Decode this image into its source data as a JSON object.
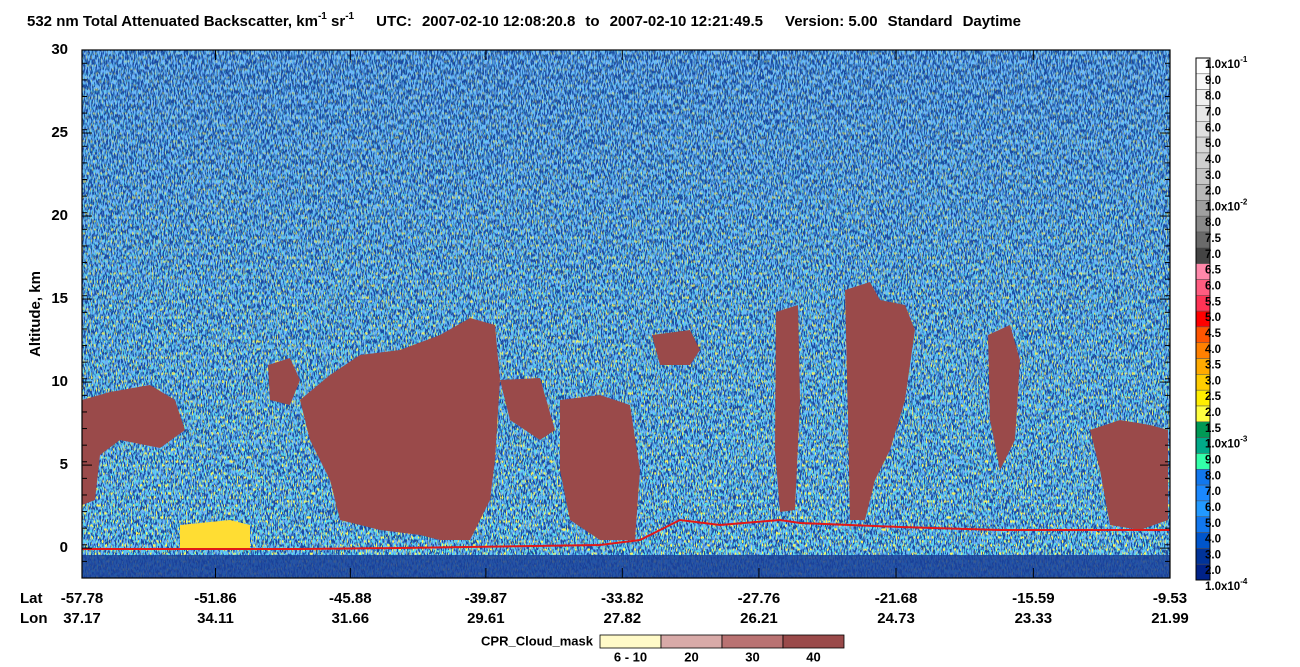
{
  "chart_data": {
    "type": "curtain",
    "title": [
      "532 nm Total Attenuated Backscatter, km",
      "-1",
      " sr",
      "-1"
    ],
    "time_range": [
      "UTC:",
      "2007-02-10 12:08:20.8",
      "to",
      "2007-02-10 12:21:49.5"
    ],
    "version": [
      "Version: 5.00",
      "Standard",
      "Daytime"
    ],
    "y_label": "Altitude, km",
    "ylim": [
      -1.8,
      30
    ],
    "yticks": [
      0,
      5,
      10,
      15,
      20,
      25,
      30
    ],
    "x_row_labels": [
      "Lat",
      "Lon"
    ],
    "xlim": [
      -57.78,
      -9.53
    ],
    "xticks": [
      -57.78,
      -51.86,
      -45.88,
      -39.87,
      -33.82,
      -27.76,
      -21.68,
      -15.59,
      -9.53
    ],
    "lon_labels": [
      37.17,
      34.11,
      31.66,
      29.61,
      27.82,
      26.21,
      24.73,
      23.33,
      21.99
    ],
    "colorbar": {
      "labels": [
        {
          "text": "1.0x10",
          "exp": "-1"
        },
        "9.0",
        "8.0",
        "7.0",
        "6.0",
        "5.0",
        "4.0",
        "3.0",
        "2.0",
        {
          "text": "1.0x10",
          "exp": "-2"
        },
        "8.0",
        "7.5",
        "7.0",
        "6.5",
        "6.0",
        "5.5",
        "5.0",
        "4.5",
        "4.0",
        "3.5",
        "3.0",
        "2.5",
        "2.0",
        "1.5",
        {
          "text": "1.0x10",
          "exp": "-3"
        },
        "9.0",
        "8.0",
        "7.0",
        "6.0",
        "5.0",
        "4.0",
        "3.0",
        "2.0",
        {
          "text": "1.0x10",
          "exp": "-4"
        }
      ],
      "colors": [
        "#ffffff",
        "#f8f8f8",
        "#f0f0f0",
        "#e8e8e8",
        "#e0e0e0",
        "#d8d8d8",
        "#d0d0d0",
        "#c6c6c6",
        "#b8b8b8",
        "#a0a0a0",
        "#8a8a8a",
        "#6a6a6a",
        "#444444",
        "#ff88aa",
        "#ff5c80",
        "#ff3355",
        "#ff0000",
        "#ff5500",
        "#ff8000",
        "#ffaa00",
        "#ffcc00",
        "#ffee00",
        "#ffff40",
        "#009955",
        "#00aa88",
        "#33ffaa",
        "#1177ee",
        "#1a88ff",
        "#2299ff",
        "#1177ee",
        "#0055cc",
        "#003399",
        "#002288"
      ]
    },
    "cloud_mask": {
      "title": "CPR_Cloud_mask",
      "labels": [
        "6 - 10",
        "20",
        "30",
        "40"
      ],
      "colors": [
        "#fffac8",
        "#d8aaa8",
        "#b97272",
        "#9a4a4a"
      ]
    }
  }
}
